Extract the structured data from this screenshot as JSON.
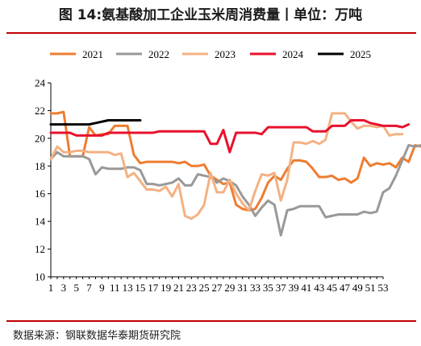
{
  "title": "图 14:氨基酸加工企业玉米周消费量丨单位：万吨",
  "source": "数据来源：钢联数据华泰期货研究院",
  "chart_data": {
    "type": "line",
    "title": "图 14:氨基酸加工企业玉米周消费量丨单位：万吨",
    "xlabel": "",
    "ylabel": "",
    "x_ticks": [
      "1",
      "3",
      "5",
      "7",
      "9",
      "11",
      "13",
      "15",
      "17",
      "19",
      "21",
      "23",
      "25",
      "27",
      "29",
      "31",
      "33",
      "35",
      "37",
      "39",
      "41",
      "43",
      "45",
      "47",
      "49",
      "51",
      "53"
    ],
    "ylim": [
      10,
      24
    ],
    "y_ticks": [
      10,
      12,
      14,
      16,
      18,
      20,
      22,
      24
    ],
    "legend_position": "top",
    "series": [
      {
        "name": "2021",
        "color": "#ed7d31",
        "values": [
          21.8,
          21.8,
          21.9,
          18.7,
          18.7,
          18.7,
          20.8,
          20.2,
          20.3,
          20.3,
          20.9,
          20.9,
          20.9,
          18.8,
          18.2,
          18.3,
          18.3,
          18.3,
          18.3,
          18.3,
          18.2,
          18.3,
          18.0,
          18.0,
          18.1,
          17.3,
          17.0,
          16.7,
          16.8,
          15.2,
          14.9,
          14.8,
          14.9,
          15.7,
          16.8,
          17.3,
          17.0,
          17.8,
          18.4,
          18.4,
          18.3,
          17.8,
          17.2,
          17.2,
          17.3,
          17.0,
          17.1,
          16.8,
          17.1,
          18.6,
          18.0,
          18.2,
          18.1,
          18.2,
          17.9,
          18.6,
          18.3,
          19.5,
          19.4,
          19.2
        ]
      },
      {
        "name": "2022",
        "color": "#999999",
        "values": [
          18.5,
          19.0,
          18.7,
          18.7,
          18.7,
          18.7,
          18.5,
          17.4,
          17.9,
          17.8,
          17.8,
          17.8,
          17.9,
          17.9,
          17.7,
          16.7,
          16.7,
          16.6,
          16.7,
          16.8,
          17.1,
          16.6,
          16.6,
          17.4,
          17.3,
          17.2,
          16.8,
          17.1,
          16.9,
          16.6,
          15.8,
          15.2,
          14.4,
          15.0,
          15.5,
          15.2,
          13.0,
          14.8,
          14.9,
          15.1,
          15.1,
          15.1,
          15.1,
          14.3,
          14.4,
          14.5,
          14.5,
          14.5,
          14.5,
          14.7,
          14.6,
          14.7,
          16.1,
          16.4,
          17.3,
          18.4,
          19.5,
          19.4,
          19.5
        ]
      },
      {
        "name": "2023",
        "color": "#f4b183",
        "values": [
          18.5,
          19.4,
          19.0,
          19.0,
          19.1,
          19.1,
          19.0,
          19.0,
          19.0,
          19.0,
          18.8,
          18.9,
          17.2,
          17.5,
          16.9,
          16.3,
          16.3,
          16.2,
          16.5,
          15.8,
          16.7,
          14.4,
          14.2,
          14.5,
          15.2,
          17.5,
          16.1,
          16.1,
          17.0,
          16.0,
          15.3,
          14.8,
          16.2,
          17.4,
          17.3,
          17.5,
          15.5,
          17.0,
          19.7,
          19.7,
          19.6,
          19.8,
          19.6,
          19.9,
          21.8,
          21.8,
          21.8,
          21.2,
          20.7,
          20.9,
          20.9,
          20.8,
          20.9,
          20.2,
          20.3,
          20.3
        ]
      },
      {
        "name": "2024",
        "color": "#e8112d",
        "values": [
          20.4,
          20.4,
          20.4,
          20.4,
          20.2,
          20.2,
          20.2,
          20.2,
          20.2,
          20.4,
          20.4,
          20.4,
          20.4,
          20.4,
          20.4,
          20.4,
          20.4,
          20.5,
          20.5,
          20.5,
          20.5,
          20.5,
          20.5,
          20.5,
          20.5,
          19.6,
          19.6,
          20.6,
          19.0,
          20.4,
          20.4,
          20.4,
          20.4,
          20.3,
          20.8,
          20.8,
          20.8,
          20.8,
          20.8,
          20.8,
          20.8,
          20.5,
          20.5,
          20.5,
          20.9,
          20.9,
          20.9,
          21.3,
          21.3,
          21.3,
          21.1,
          21.0,
          20.9,
          20.9,
          20.9,
          20.8,
          21.0
        ]
      },
      {
        "name": "2025",
        "color": "#000000",
        "values": [
          21.0,
          21.0,
          21.0,
          21.0,
          21.0,
          21.0,
          21.0,
          21.1,
          21.2,
          21.3,
          21.3,
          21.3,
          21.3,
          21.3,
          21.3
        ]
      }
    ]
  }
}
